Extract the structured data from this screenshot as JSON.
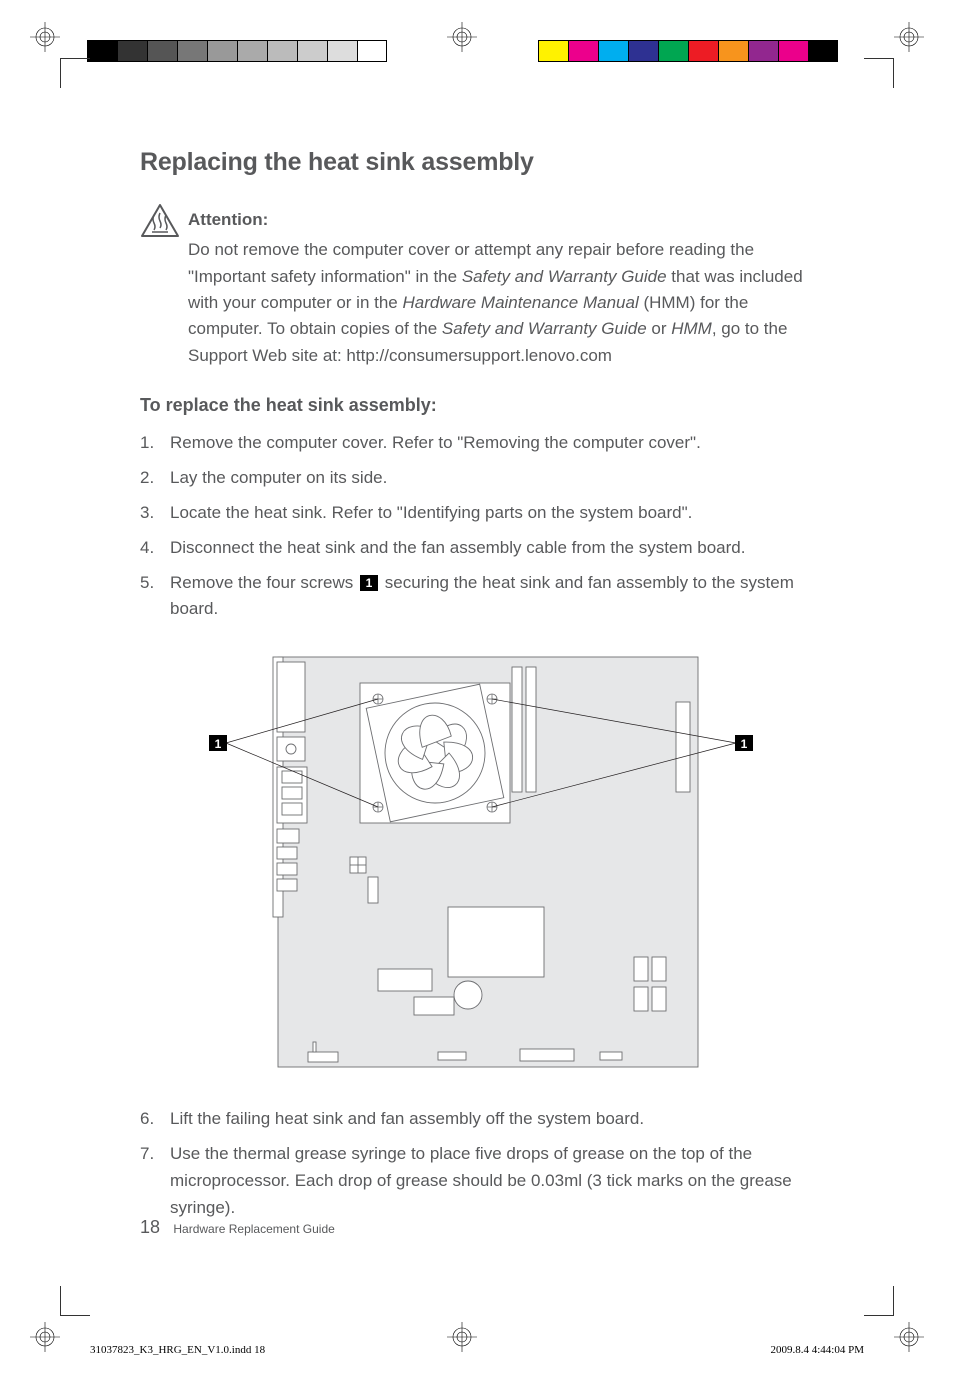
{
  "print": {
    "swatches_left": [
      "#000000",
      "#333333",
      "#555555",
      "#777777",
      "#999999",
      "#aaaaaa",
      "#bbbbbb",
      "#cccccc",
      "#dddddd",
      "#ffffff"
    ],
    "swatches_right": [
      "#fff200",
      "#ec008c",
      "#00aeef",
      "#2e3192",
      "#00a651",
      "#ed1c24",
      "#f7941d",
      "#92278f",
      "#eb008b",
      "#000000"
    ]
  },
  "title": "Replacing the heat sink assembly",
  "attention": {
    "label": "Attention:",
    "body_parts": [
      "Do not remove the computer cover or attempt any repair before reading the \"Important safety information\" in the ",
      "Safety and Warranty Guide",
      " that was included with your computer or in the ",
      "Hardware Maintenance Manual",
      " (HMM) for the computer. To obtain copies of the ",
      "Safety and Warranty Guide",
      " or ",
      "HMM",
      ", go to the Support Web site at: http://consumersupport.lenovo.com"
    ]
  },
  "subheading": "To replace the heat sink assembly:",
  "steps": {
    "s1": "Remove the computer cover. Refer to \"Removing the computer cover\".",
    "s2": "Lay the computer on its side.",
    "s3": "Locate the heat sink. Refer to \"Identifying parts on the system board\".",
    "s4": "Disconnect the heat sink and the fan assembly cable from the system board.",
    "s5_pre": "Remove the four screws ",
    "s5_badge": "1",
    "s5_post": " securing the heat sink and fan assembly to the system board.",
    "s6": "Lift the failing heat sink and fan assembly off the system board.",
    "s7": "Use the thermal grease syringe to place five drops of grease on the top of the microprocessor. Each drop of grease should be 0.03ml (3 tick marks on the grease syringe)."
  },
  "figure": {
    "callout_label": "1",
    "board_fill": "#e6e7e8",
    "stroke": "#6d6e71"
  },
  "footer": {
    "page_number": "18",
    "doc_title": "Hardware Replacement Guide"
  },
  "imprint": {
    "file": "31037823_K3_HRG_EN_V1.0.indd   18",
    "timestamp": "2009.8.4   4:44:04 PM"
  }
}
